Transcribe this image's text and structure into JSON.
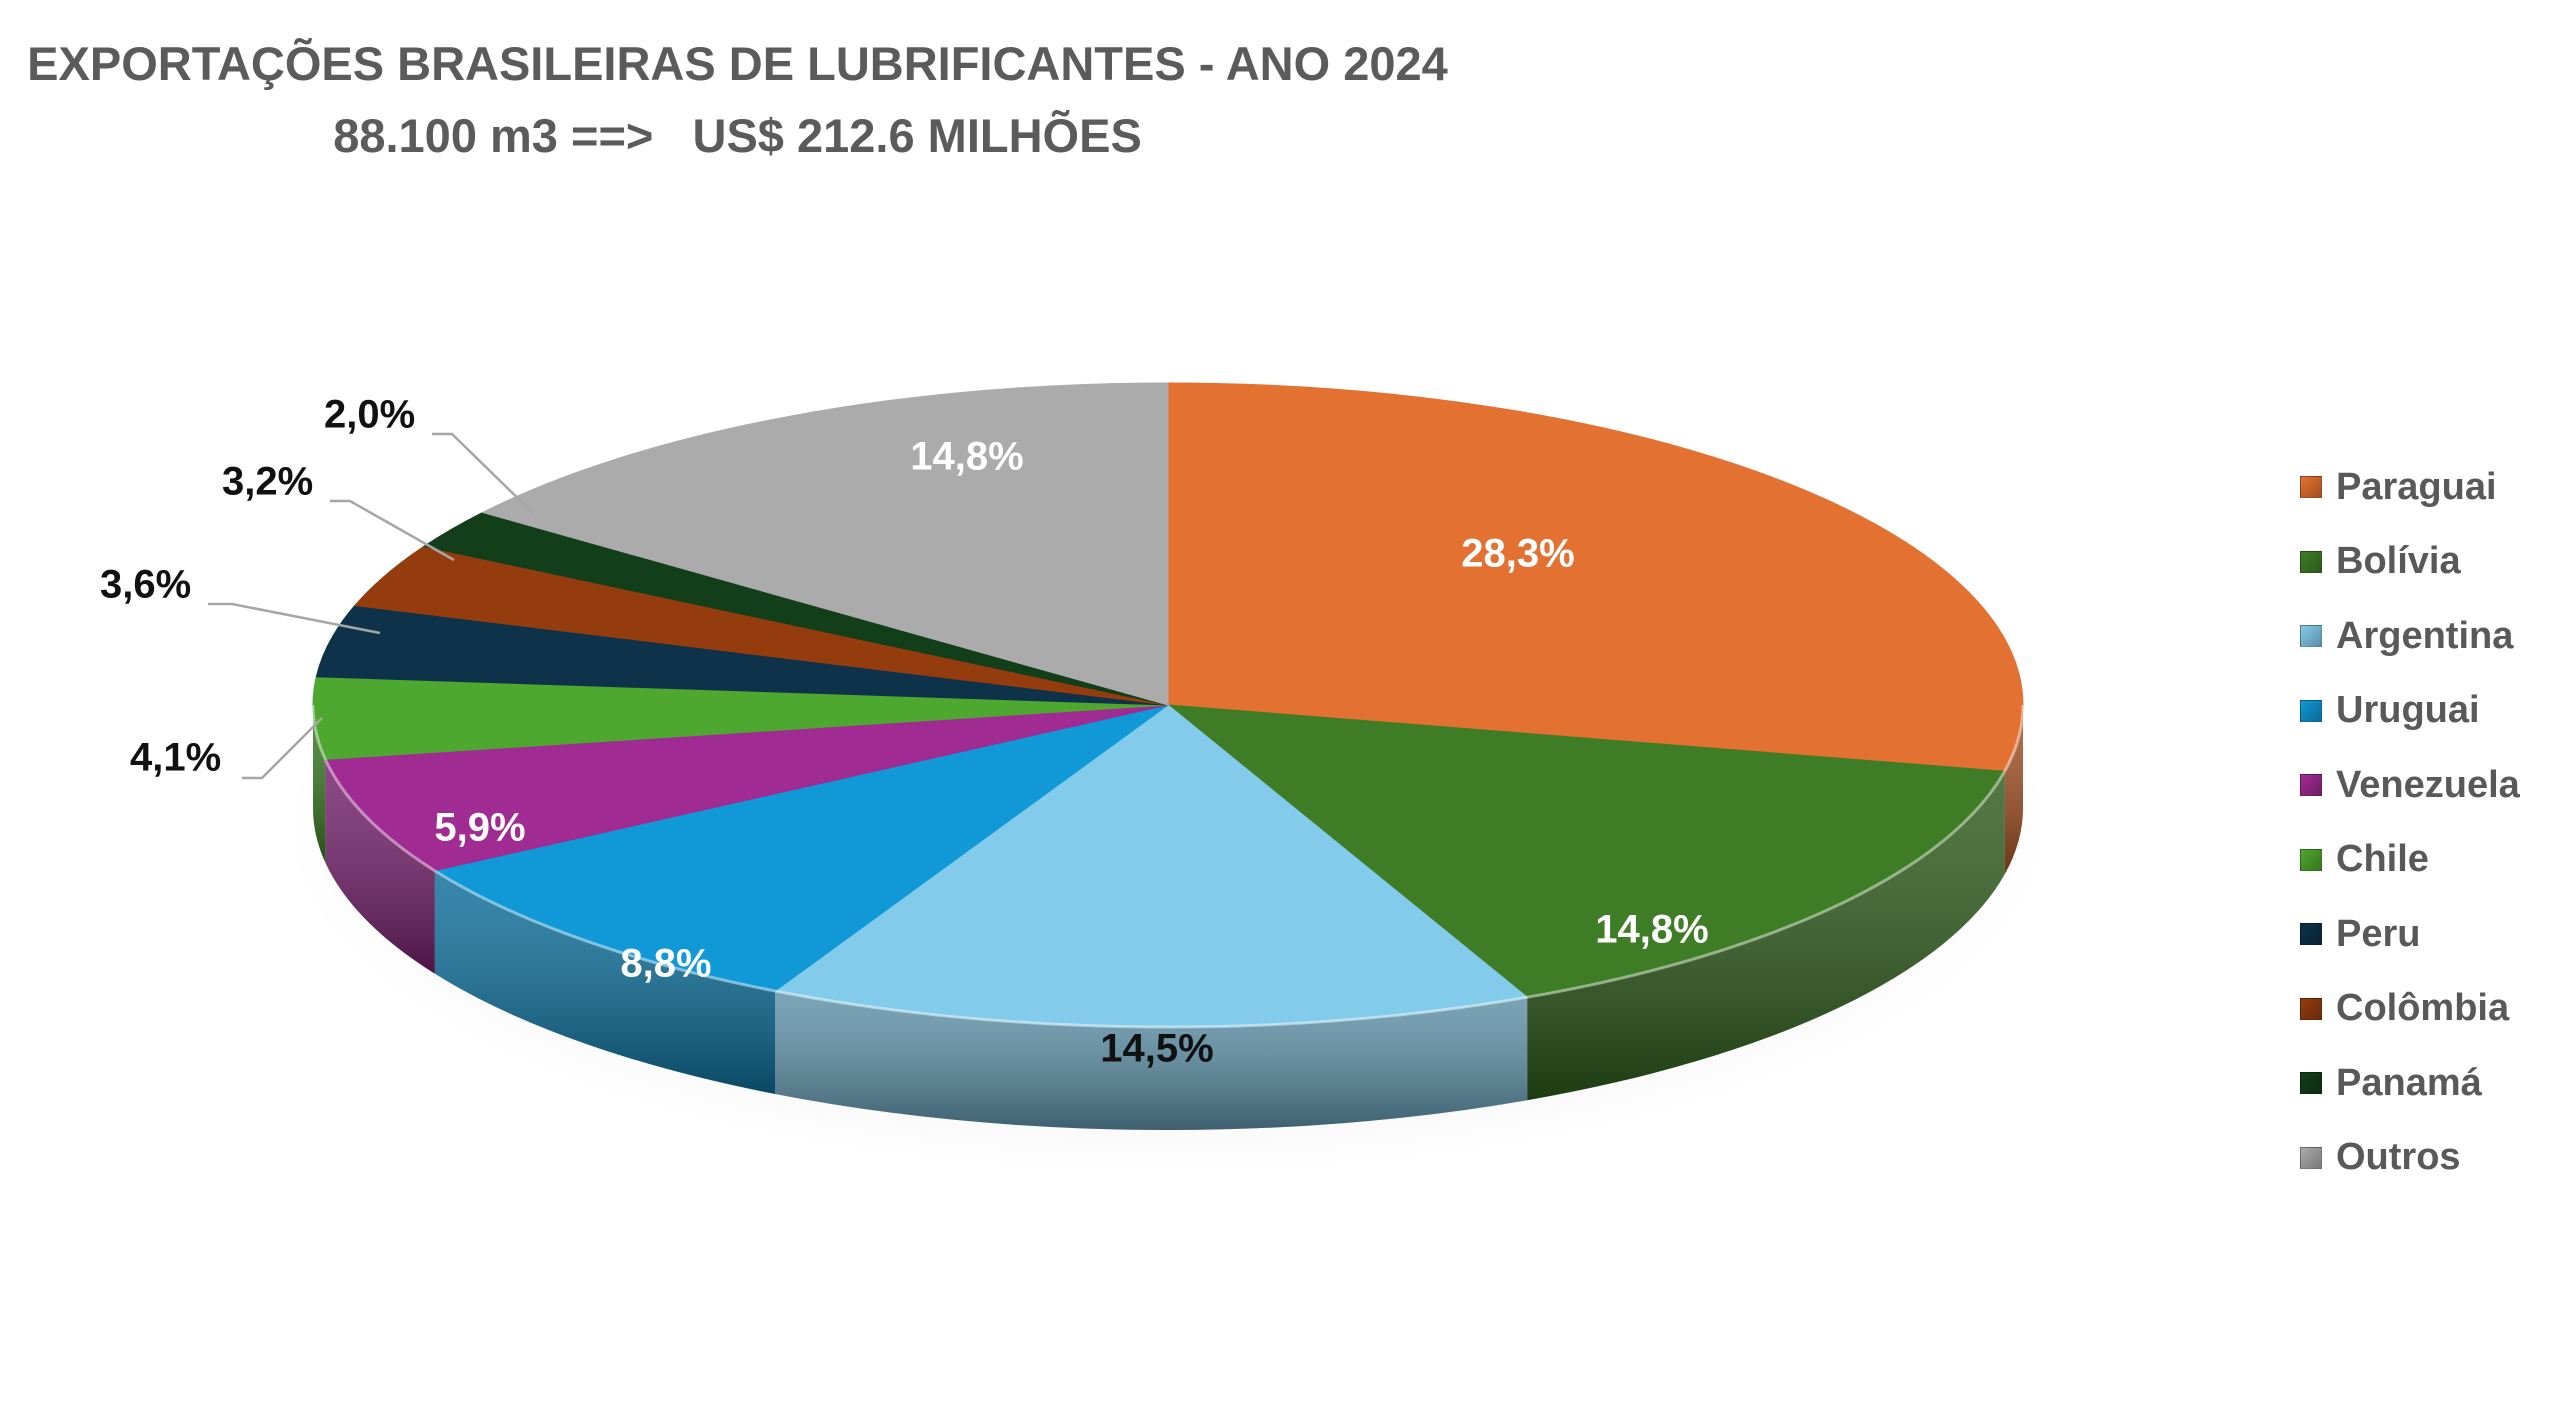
{
  "chart_data": {
    "type": "pie",
    "title": "EXPORTAÇÕES BRASILEIRAS DE LUBRIFICANTES - ANO 2024",
    "subtitle": "88.100 m3 ==>   US$ 212.6 MILHÕES",
    "legend_position": "right",
    "slices": [
      {
        "name": "Paraguai",
        "value": 28.3,
        "label": "28,3%",
        "color": "#E37131"
      },
      {
        "name": "Bolívia",
        "value": 14.8,
        "label": "14,8%",
        "color": "#3E7D25"
      },
      {
        "name": "Argentina",
        "value": 14.5,
        "label": "14,5%",
        "color": "#83CBEB"
      },
      {
        "name": "Uruguai",
        "value": 8.8,
        "label": "8,8%",
        "color": "#1099D6"
      },
      {
        "name": "Venezuela",
        "value": 5.9,
        "label": "5,9%",
        "color": "#A02B93"
      },
      {
        "name": "Chile",
        "value": 4.1,
        "label": "4,1%",
        "color": "#4EA72E"
      },
      {
        "name": "Peru",
        "value": 3.6,
        "label": "3,6%",
        "color": "#0E3249"
      },
      {
        "name": "Colômbia",
        "value": 3.2,
        "label": "3,2%",
        "color": "#953C0E"
      },
      {
        "name": "Panamá",
        "value": 2.0,
        "label": "2,0%",
        "color": "#123E1A"
      },
      {
        "name": "Outros",
        "value": 14.8,
        "label": "14,8%",
        "color": "#ABABAB"
      }
    ]
  }
}
